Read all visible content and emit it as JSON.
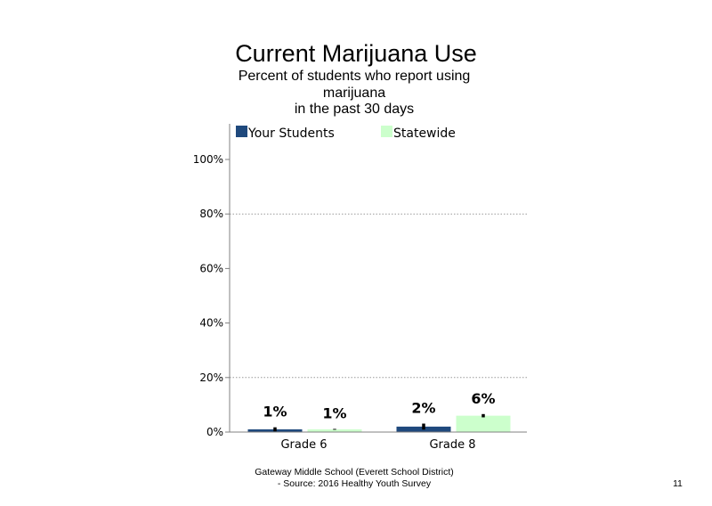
{
  "slide": {
    "footer_line1": "Gateway Middle  School  (Everett School District)",
    "footer_line2": "- Source: 2016 Healthy  Youth Survey",
    "page_number": "11"
  },
  "chart_data": {
    "type": "bar",
    "title": "Current Marijuana Use",
    "subtitle_lines": [
      "Percent of students who report using",
      "marijuana",
      "in the past 30 days"
    ],
    "categories": [
      "Grade 6",
      "Grade 8"
    ],
    "series": [
      {
        "name": "Your Students",
        "values": [
          1,
          2
        ],
        "labels": [
          "1%",
          "2%"
        ],
        "error": [
          1.5,
          2.2
        ],
        "color": "#1F497D"
      },
      {
        "name": "Statewide",
        "values": [
          1,
          6
        ],
        "labels": [
          "1%",
          "6%"
        ],
        "error": [
          0.3,
          1.2
        ],
        "color": "#CCFFCC"
      }
    ],
    "ylim": [
      0,
      100
    ],
    "yticks": [
      0,
      20,
      40,
      60,
      80,
      100
    ],
    "ytick_labels": [
      "0%",
      "20%",
      "40%",
      "60%",
      "80%",
      "100%"
    ],
    "gridlines": [
      20,
      80
    ],
    "legend_position": "top"
  }
}
